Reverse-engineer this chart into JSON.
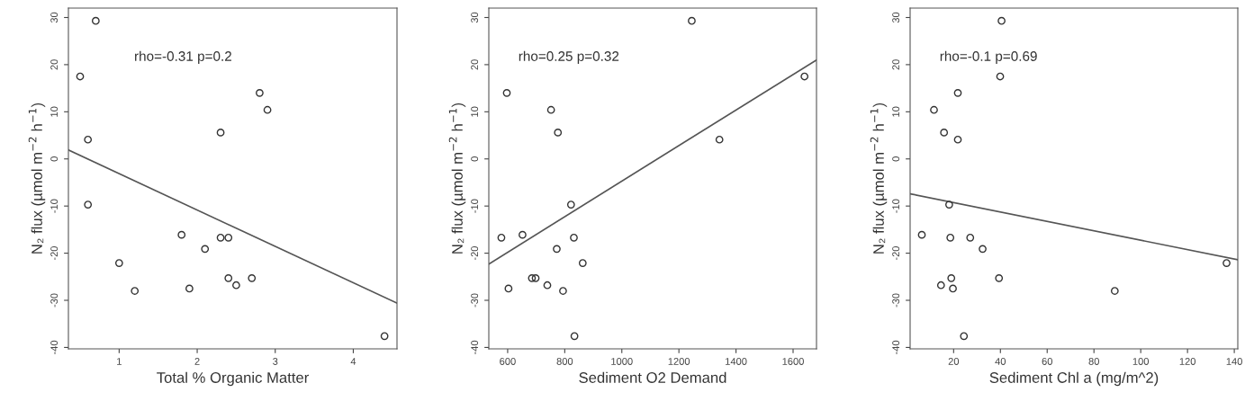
{
  "chart_data": [
    {
      "type": "scatter",
      "xlabel": "Total % Organic Matter",
      "ylabel": "N₂ flux (µmol m$^{−2}$ h$^{−1}$)",
      "annotations": [
        "rho=-0.31 p=0.2"
      ],
      "grid": false,
      "xlim": [
        0.35,
        4.56
      ],
      "ylim": [
        -40.3,
        32
      ],
      "xticks": [
        1,
        2,
        3,
        4
      ],
      "yticks": [
        -40,
        -30,
        -20,
        -10,
        0,
        10,
        20,
        30
      ],
      "series": [
        {
          "marker": "circle",
          "color": "#333333",
          "x": [
            0.5,
            0.7,
            0.6,
            0.6,
            1.0,
            1.2,
            1.8,
            1.9,
            2.1,
            2.3,
            2.3,
            2.4,
            2.4,
            2.5,
            2.7,
            2.8,
            2.9,
            4.4
          ],
          "values": [
            17.5,
            29.3,
            4.1,
            -9.7,
            -22.1,
            -28.0,
            -16.1,
            -27.5,
            -19.1,
            5.6,
            -16.7,
            -16.7,
            -25.3,
            -26.8,
            -25.3,
            14.0,
            10.4,
            -37.6
          ]
        },
        {
          "type": "line",
          "color": "#555555",
          "x": [
            0.35,
            4.56
          ],
          "values": [
            1.9,
            -30.6
          ]
        }
      ]
    },
    {
      "type": "scatter",
      "xlabel": "Sediment O2 Demand",
      "ylabel": "N₂ flux (µmol m$^{−2}$ h$^{−1}$)",
      "annotations": [
        "rho=0.25 p=0.32"
      ],
      "grid": false,
      "xlim": [
        534,
        1682
      ],
      "ylim": [
        -40.3,
        32
      ],
      "xticks": [
        600,
        800,
        1000,
        1200,
        1400,
        1600
      ],
      "yticks": [
        -40,
        -30,
        -20,
        -10,
        0,
        10,
        20,
        30
      ],
      "series": [
        {
          "marker": "circle",
          "color": "#333333",
          "x": [
            578,
            597,
            603,
            652,
            685,
            698,
            739,
            752,
            772,
            776,
            794,
            822,
            832,
            834,
            863,
            1245,
            1342,
            1640
          ],
          "values": [
            -16.7,
            14.0,
            -27.5,
            -16.1,
            -25.3,
            -25.3,
            -26.8,
            10.4,
            -19.1,
            5.6,
            -28.0,
            -9.7,
            -16.7,
            -37.6,
            -22.1,
            29.3,
            4.1,
            17.5
          ]
        },
        {
          "type": "line",
          "color": "#555555",
          "x": [
            534,
            1682
          ],
          "values": [
            -22.3,
            21.0
          ]
        }
      ]
    },
    {
      "type": "scatter",
      "xlabel": "Sediment Chl a (mg/m^2)",
      "ylabel": "N₂ flux (µmol m$^{−2}$ h$^{−1}$)",
      "annotations": [
        "rho=-0.1 p=0.69"
      ],
      "grid": false,
      "xlim": [
        1.4,
        141.5
      ],
      "ylim": [
        -40.3,
        32
      ],
      "xticks": [
        20,
        40,
        60,
        80,
        100,
        120,
        140
      ],
      "yticks": [
        -40,
        -30,
        -20,
        -10,
        0,
        10,
        20,
        30
      ],
      "series": [
        {
          "marker": "circle",
          "color": "#333333",
          "x": [
            40.5,
            39.9,
            21.8,
            11.6,
            15.9,
            21.8,
            18.1,
            6.4,
            18.6,
            27.1,
            32.4,
            19.0,
            39.4,
            14.6,
            19.7,
            24.4,
            88.9,
            136.7
          ],
          "values": [
            29.3,
            17.5,
            14.0,
            10.4,
            5.6,
            4.1,
            -9.7,
            -16.1,
            -16.7,
            -16.7,
            -19.1,
            -25.3,
            -25.3,
            -26.8,
            -27.5,
            -37.6,
            -28.0,
            -22.1
          ]
        },
        {
          "type": "line",
          "color": "#555555",
          "x": [
            1.4,
            141.5
          ],
          "values": [
            -7.4,
            -21.4
          ]
        }
      ]
    }
  ]
}
